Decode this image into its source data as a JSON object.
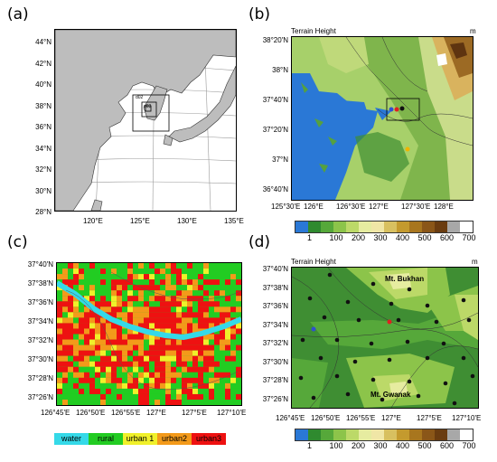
{
  "panels": {
    "a": {
      "label": "(a)",
      "lat_ticks": [
        "44°N",
        "42°N",
        "40°N",
        "38°N",
        "36°N",
        "34°N",
        "32°N",
        "30°N",
        "28°N"
      ],
      "lon_ticks": [
        "120°E",
        "125°E",
        "130°E",
        "135°E"
      ],
      "domains": [
        "d02",
        "d03"
      ]
    },
    "b": {
      "label": "(b)",
      "title": "Terrain Height",
      "unit": "m",
      "lat_ticks": [
        "38°20'N",
        "38°N",
        "37°40'N",
        "37°20'N",
        "37°N",
        "36°40'N"
      ],
      "lon_ticks": [
        "125°30'E",
        "126°E",
        "126°30'E",
        "127°E",
        "127°30'E",
        "128°E"
      ]
    },
    "c": {
      "label": "(c)",
      "lat_ticks": [
        "37°40'N",
        "37°38'N",
        "37°36'N",
        "37°34'N",
        "37°32'N",
        "37°30'N",
        "37°28'N",
        "37°26'N"
      ],
      "lon_ticks": [
        "126°45'E",
        "126°50'E",
        "126°55'E",
        "127°E",
        "127°5'E",
        "127°10'E"
      ],
      "legend": [
        {
          "label": "water",
          "color": "#35d9e8"
        },
        {
          "label": "rural",
          "color": "#22cc22"
        },
        {
          "label": "urban 1",
          "color": "#f0f02a"
        },
        {
          "label": "urban2",
          "color": "#f39a1a"
        },
        {
          "label": "urban3",
          "color": "#ee1111"
        }
      ]
    },
    "d": {
      "label": "(d)",
      "title": "Terrain Height",
      "unit": "m",
      "lat_ticks": [
        "37°40'N",
        "37°38'N",
        "37°36'N",
        "37°34'N",
        "37°32'N",
        "37°30'N",
        "37°28'N",
        "37°26'N"
      ],
      "lon_ticks": [
        "126°45'E",
        "126°50'E",
        "126°55'E",
        "127°E",
        "127°5'E",
        "127°10'E"
      ],
      "mountains": [
        "Mt. Bukhan",
        "Mt. Gwanak"
      ]
    }
  },
  "colorbar": {
    "labels": [
      "1",
      "100",
      "200",
      "300",
      "400",
      "500",
      "600",
      "700"
    ],
    "colors": [
      "#2a78d6",
      "#2f8a2f",
      "#56a83a",
      "#8cc44a",
      "#bcd968",
      "#e6eca0",
      "#f0e6a6",
      "#d8c060",
      "#c49a2e",
      "#a8761e",
      "#8a5618",
      "#6a3c10",
      "#a8a8a8",
      "#ffffff"
    ]
  }
}
